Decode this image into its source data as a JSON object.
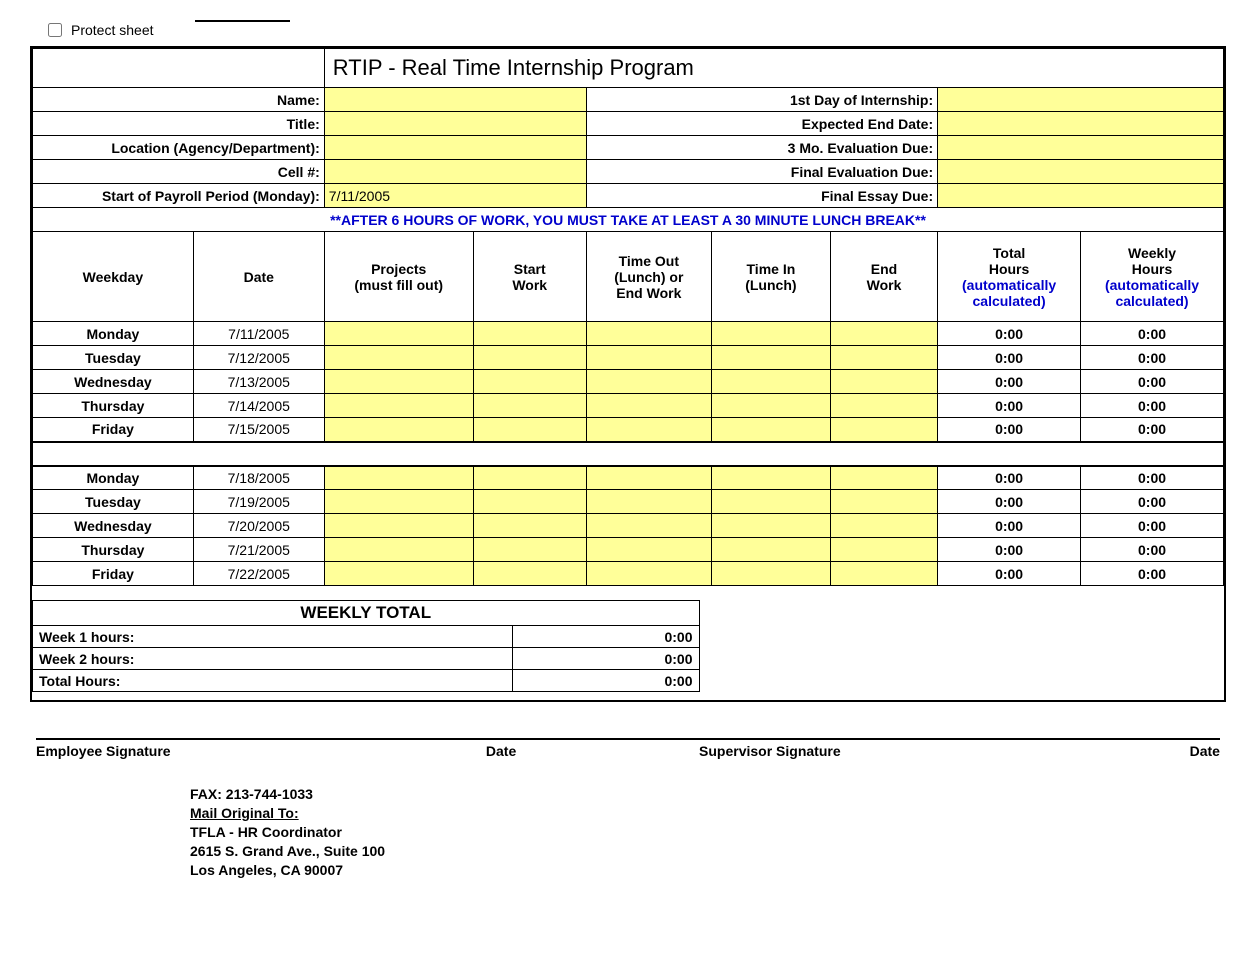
{
  "protect_sheet_label": "Protect sheet",
  "title": "RTIP - Real Time Internship Program",
  "header_labels": {
    "name": "Name:",
    "title": "Title:",
    "location": "Location (Agency/Department):",
    "cell": "Cell #:",
    "payroll_start": "Start of Payroll Period (Monday):",
    "first_day": "1st Day of Internship:",
    "expected_end": "Expected End Date:",
    "eval3": "3 Mo. Evaluation Due:",
    "final_eval": "Final Evaluation Due:",
    "final_essay": "Final Essay Due:"
  },
  "header_values": {
    "name": "",
    "title": "",
    "location": "",
    "cell": "",
    "payroll_start": "7/11/2005",
    "first_day": "",
    "expected_end": "",
    "eval3": "",
    "final_eval": "",
    "final_essay": ""
  },
  "notice_text": "**AFTER 6 HOURS OF WORK, YOU MUST TAKE AT LEAST A 30 MINUTE LUNCH BREAK**",
  "columns": {
    "weekday": "Weekday",
    "date": "Date",
    "projects": "Projects\n(must fill out)",
    "start": "Start\nWork",
    "timeout": "Time Out\n(Lunch) or\nEnd Work",
    "timein": "Time In\n(Lunch)",
    "end": "End\nWork",
    "total_black": "Total\nHours",
    "total_blue": "(automatically\ncalculated)",
    "weekly_black": "Weekly\nHours",
    "weekly_blue": "(automatically\ncalculated)"
  },
  "week1": [
    {
      "day": "Monday",
      "date": "7/11/2005",
      "total": "0:00",
      "weekly": "0:00"
    },
    {
      "day": "Tuesday",
      "date": "7/12/2005",
      "total": "0:00",
      "weekly": "0:00"
    },
    {
      "day": "Wednesday",
      "date": "7/13/2005",
      "total": "0:00",
      "weekly": "0:00"
    },
    {
      "day": "Thursday",
      "date": "7/14/2005",
      "total": "0:00",
      "weekly": "0:00"
    },
    {
      "day": "Friday",
      "date": "7/15/2005",
      "total": "0:00",
      "weekly": "0:00"
    }
  ],
  "week2": [
    {
      "day": "Monday",
      "date": "7/18/2005",
      "total": "0:00",
      "weekly": "0:00"
    },
    {
      "day": "Tuesday",
      "date": "7/19/2005",
      "total": "0:00",
      "weekly": "0:00"
    },
    {
      "day": "Wednesday",
      "date": "7/20/2005",
      "total": "0:00",
      "weekly": "0:00"
    },
    {
      "day": "Thursday",
      "date": "7/21/2005",
      "total": "0:00",
      "weekly": "0:00"
    },
    {
      "day": "Friday",
      "date": "7/22/2005",
      "total": "0:00",
      "weekly": "0:00"
    }
  ],
  "summary": {
    "title": "WEEKLY TOTAL",
    "rows": [
      {
        "label": "Week 1 hours:",
        "value": "0:00"
      },
      {
        "label": "Week 2 hours:",
        "value": "0:00"
      },
      {
        "label": "Total Hours:",
        "value": "0:00"
      }
    ]
  },
  "signatures": {
    "employee": "Employee Signature",
    "date": "Date",
    "supervisor": "Supervisor Signature"
  },
  "contact": {
    "fax": "FAX:  213-744-1033",
    "mail_label": "Mail Original To:",
    "org": "TFLA - HR Coordinator",
    "addr1": "2615 S. Grand Ave., Suite 100",
    "addr2": "Los Angeles, CA 90007"
  },
  "styling": {
    "input_bg": "#ffff99",
    "calc_color": "#0000cc",
    "border_color": "#000000",
    "background": "#ffffff",
    "col_widths_pct": [
      13.5,
      11,
      12.5,
      9.5,
      10.5,
      10,
      9,
      12,
      12
    ]
  }
}
